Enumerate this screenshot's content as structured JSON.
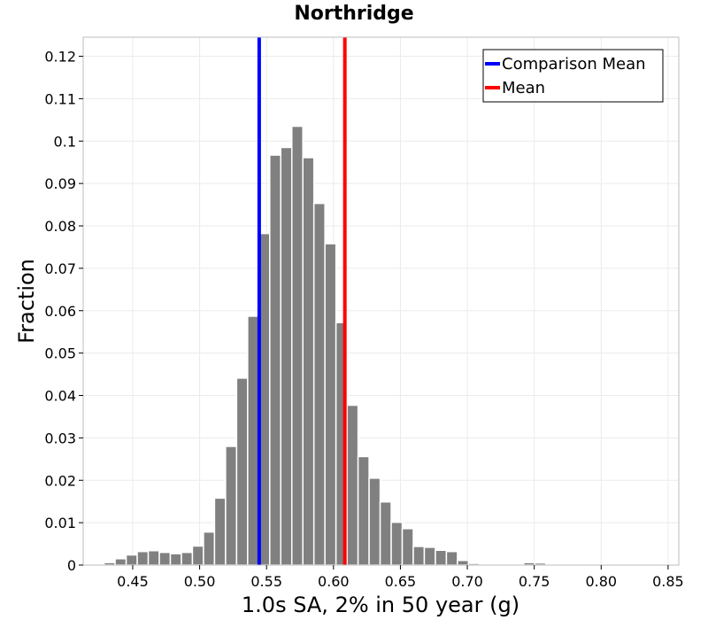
{
  "chart_data": {
    "type": "bar",
    "title": "Northridge",
    "xlabel": "1.0s SA, 2% in 50 year (g)",
    "ylabel": "Fraction",
    "xlim": [
      0.413,
      0.858
    ],
    "ylim": [
      0,
      0.1245
    ],
    "xticks": [
      0.45,
      0.5,
      0.55,
      0.6,
      0.65,
      0.7,
      0.75,
      0.8,
      0.85
    ],
    "xtick_labels": [
      "0.45",
      "0.50",
      "0.55",
      "0.60",
      "0.65",
      "0.70",
      "0.75",
      "0.80",
      "0.85"
    ],
    "yticks": [
      0,
      0.01,
      0.02,
      0.03,
      0.04,
      0.05,
      0.06,
      0.07,
      0.08,
      0.09,
      0.1,
      0.11,
      0.12
    ],
    "ytick_labels": [
      "0",
      "0.01",
      "0.02",
      "0.03",
      "0.04",
      "0.05",
      "0.06",
      "0.07",
      "0.08",
      "0.09",
      "0.1",
      "0.11",
      "0.12"
    ],
    "grid": true,
    "bin_width": 0.00825,
    "bins": {
      "x_centers": [
        0.4245,
        0.43275,
        0.441,
        0.44925,
        0.4575,
        0.46575,
        0.474,
        0.48225,
        0.4905,
        0.49875,
        0.507,
        0.51525,
        0.5235,
        0.53175,
        0.54,
        0.54825,
        0.5565,
        0.56475,
        0.573,
        0.58125,
        0.5895,
        0.59775,
        0.606,
        0.61425,
        0.6225,
        0.63075,
        0.639,
        0.64725,
        0.6555,
        0.66375,
        0.672,
        0.68025,
        0.6885,
        0.69675,
        0.705,
        0.71325,
        0.7215,
        0.72975,
        0.738,
        0.74625,
        0.7545,
        0.76275,
        0.771,
        0.77925,
        0.7875,
        0.79575,
        0.804,
        0.81225,
        0.8205,
        0.82875,
        0.837,
        0.84525
      ],
      "values": [
        0.0002,
        0.0006,
        0.0015,
        0.0024,
        0.0032,
        0.0034,
        0.003,
        0.0027,
        0.003,
        0.0045,
        0.0078,
        0.0158,
        0.028,
        0.0441,
        0.0587,
        0.0782,
        0.0967,
        0.0985,
        0.1035,
        0.0961,
        0.0853,
        0.0758,
        0.0572,
        0.0377,
        0.0256,
        0.0205,
        0.0149,
        0.0101,
        0.0086,
        0.0044,
        0.0042,
        0.0035,
        0.0032,
        0.0011,
        0.0004,
        0.0003,
        0.0002,
        0.0002,
        0.0002,
        0.0006,
        0.0005,
        0.0003,
        0.0002,
        0.0001,
        0.0001,
        0.0,
        0.0,
        0.0,
        0.0,
        0.0,
        0.0,
        0.0
      ],
      "color": "#808080"
    },
    "vlines": [
      {
        "name": "Comparison Mean",
        "x": 0.5445,
        "color": "#0000ff"
      },
      {
        "name": "Mean",
        "x": 0.6085,
        "color": "#ff0000"
      }
    ],
    "legend": {
      "position": "top-right",
      "entries": [
        {
          "label": "Comparison Mean",
          "color": "#0000ff"
        },
        {
          "label": "Mean",
          "color": "#ff0000"
        }
      ]
    }
  }
}
